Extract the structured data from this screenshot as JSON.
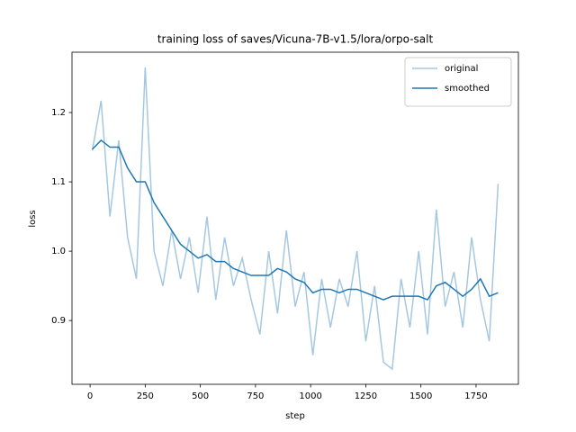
{
  "chart_data": {
    "type": "line",
    "title": "training loss of saves/Vicuna-7B-v1.5/lora/orpo-salt",
    "xlabel": "step",
    "ylabel": "loss",
    "x": [
      10,
      50,
      90,
      130,
      170,
      210,
      250,
      290,
      330,
      370,
      410,
      450,
      490,
      530,
      570,
      610,
      650,
      690,
      730,
      770,
      810,
      850,
      890,
      930,
      970,
      1010,
      1050,
      1090,
      1130,
      1170,
      1210,
      1250,
      1290,
      1330,
      1370,
      1410,
      1450,
      1490,
      1530,
      1570,
      1610,
      1650,
      1690,
      1730,
      1770,
      1810,
      1850
    ],
    "series": [
      {
        "name": "original",
        "color": "#a5c8e1",
        "values": [
          1.145,
          1.217,
          1.05,
          1.16,
          1.02,
          0.96,
          1.265,
          1.0,
          0.95,
          1.03,
          0.96,
          1.02,
          0.94,
          1.05,
          0.93,
          1.02,
          0.95,
          0.99,
          0.93,
          0.88,
          1.0,
          0.91,
          1.03,
          0.92,
          0.97,
          0.85,
          0.96,
          0.89,
          0.96,
          0.92,
          1.0,
          0.87,
          0.95,
          0.84,
          0.83,
          0.96,
          0.89,
          1.0,
          0.88,
          1.06,
          0.92,
          0.97,
          0.89,
          1.02,
          0.93,
          0.87,
          1.097
        ]
      },
      {
        "name": "smoothed",
        "color": "#1f77b4",
        "values": [
          1.147,
          1.16,
          1.15,
          1.15,
          1.12,
          1.1,
          1.1,
          1.07,
          1.05,
          1.03,
          1.01,
          1.0,
          0.99,
          0.995,
          0.985,
          0.985,
          0.975,
          0.97,
          0.965,
          0.965,
          0.965,
          0.975,
          0.97,
          0.96,
          0.955,
          0.94,
          0.945,
          0.945,
          0.94,
          0.945,
          0.945,
          0.94,
          0.935,
          0.93,
          0.935,
          0.935,
          0.935,
          0.935,
          0.93,
          0.95,
          0.955,
          0.945,
          0.935,
          0.945,
          0.96,
          0.935,
          0.94
        ]
      }
    ],
    "xlim": [
      -82,
      1942
    ],
    "ylim": [
      0.808,
      1.287
    ],
    "xticks": [
      0,
      250,
      500,
      750,
      1000,
      1250,
      1500,
      1750
    ],
    "yticks": [
      0.9,
      {
        "value": 1,
        "label": "1.0"
      },
      1.1,
      1.2
    ],
    "legend": "upper right",
    "grid": false
  }
}
